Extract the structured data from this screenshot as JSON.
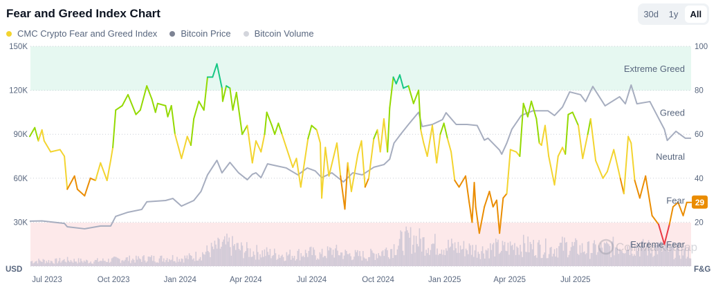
{
  "header": {
    "title": "Fear and Greed Index Chart"
  },
  "range_selector": {
    "options": [
      "30d",
      "1y",
      "All"
    ],
    "selected": "All"
  },
  "legend": [
    {
      "label": "CMC Crypto Fear and Greed Index",
      "color": "#f3d42f"
    },
    {
      "label": "Bitcoin Price",
      "color": "#7d8394"
    },
    {
      "label": "Bitcoin Volume",
      "color": "#d3d5dc"
    }
  ],
  "watermark": "CoinMarketCap",
  "chart_data": {
    "type": "line",
    "title": "Fear and Greed Index Chart",
    "left_axis": {
      "label": "USD",
      "ticks": [
        "30K",
        "60K",
        "90K",
        "120K",
        "150K"
      ],
      "range": [
        0,
        150000
      ]
    },
    "right_axis": {
      "label": "F&G",
      "ticks": [
        "20",
        "40",
        "60",
        "80",
        "100"
      ],
      "range": [
        0,
        100
      ]
    },
    "x_ticks": [
      "Jul 2023",
      "Oct 2023",
      "Jan 2024",
      "Apr 2024",
      "Jul 2024",
      "Oct 2024",
      "Jan 2025",
      "Apr 2025",
      "Jul 2025"
    ],
    "x_tick_dates": [
      "2023-07-01",
      "2023-10-01",
      "2024-01-01",
      "2024-04-01",
      "2024-07-01",
      "2024-10-01",
      "2025-01-01",
      "2025-04-01",
      "2025-07-01"
    ],
    "grid": true,
    "legend_position": "top-left",
    "zones": [
      {
        "label": "Extreme Greed",
        "from": 80,
        "to": 100,
        "color": "#e6f8f1"
      },
      {
        "label": "Greed",
        "from": 60,
        "to": 80
      },
      {
        "label": "Neutral",
        "from": 40,
        "to": 60
      },
      {
        "label": "Fear",
        "from": 20,
        "to": 40
      },
      {
        "label": "Extreme Fear",
        "from": 0,
        "to": 20,
        "color": "#fde9ea"
      }
    ],
    "zone_colors": {
      "extreme_fear": "#ea3943",
      "fear": "#ea8c00",
      "neutral": "#f3d42f",
      "greed": "#93d900",
      "extreme_greed": "#16c784"
    },
    "current_value": {
      "label": "29",
      "value": 29,
      "color": "#ea8c00"
    },
    "series": [
      {
        "name": "CMC Crypto Fear and Greed Index",
        "axis": "right",
        "points": [
          [
            "2023-06-07",
            59
          ],
          [
            "2023-06-14",
            63
          ],
          [
            "2023-06-19",
            57
          ],
          [
            "2023-06-24",
            62
          ],
          [
            "2023-06-27",
            57
          ],
          [
            "2023-07-06",
            52
          ],
          [
            "2023-07-19",
            53
          ],
          [
            "2023-07-25",
            50
          ],
          [
            "2023-07-29",
            35
          ],
          [
            "2023-08-08",
            41
          ],
          [
            "2023-08-12",
            35
          ],
          [
            "2023-08-22",
            32
          ],
          [
            "2023-08-30",
            40
          ],
          [
            "2023-09-06",
            39
          ],
          [
            "2023-09-13",
            47
          ],
          [
            "2023-09-22",
            39
          ],
          [
            "2023-09-27",
            48
          ],
          [
            "2023-09-30",
            54
          ],
          [
            "2023-10-04",
            71
          ],
          [
            "2023-10-13",
            73
          ],
          [
            "2023-10-21",
            78
          ],
          [
            "2023-11-01",
            69
          ],
          [
            "2023-11-07",
            71
          ],
          [
            "2023-11-16",
            82
          ],
          [
            "2023-11-23",
            76
          ],
          [
            "2023-11-28",
            70
          ],
          [
            "2023-12-01",
            74
          ],
          [
            "2023-12-12",
            73
          ],
          [
            "2023-12-15",
            68
          ],
          [
            "2023-12-20",
            73
          ],
          [
            "2023-12-25",
            60
          ],
          [
            "2024-01-03",
            49
          ],
          [
            "2024-01-11",
            59
          ],
          [
            "2024-01-16",
            55
          ],
          [
            "2024-01-20",
            67
          ],
          [
            "2024-01-27",
            75
          ],
          [
            "2024-02-03",
            71
          ],
          [
            "2024-02-08",
            86
          ],
          [
            "2024-02-15",
            86
          ],
          [
            "2024-02-21",
            92
          ],
          [
            "2024-02-28",
            81
          ],
          [
            "2024-02-29",
            75
          ],
          [
            "2024-03-05",
            82
          ],
          [
            "2024-03-10",
            81
          ],
          [
            "2024-03-14",
            71
          ],
          [
            "2024-03-19",
            79
          ],
          [
            "2024-03-27",
            60
          ],
          [
            "2024-04-03",
            64
          ],
          [
            "2024-04-10",
            47
          ],
          [
            "2024-04-15",
            57
          ],
          [
            "2024-04-22",
            52
          ],
          [
            "2024-04-27",
            60
          ],
          [
            "2024-04-30",
            70
          ],
          [
            "2024-05-07",
            64
          ],
          [
            "2024-05-11",
            60
          ],
          [
            "2024-05-16",
            65
          ],
          [
            "2024-05-21",
            60
          ],
          [
            "2024-05-27",
            54
          ],
          [
            "2024-06-05",
            45
          ],
          [
            "2024-06-10",
            49
          ],
          [
            "2024-06-16",
            36
          ],
          [
            "2024-06-26",
            58
          ],
          [
            "2024-07-01",
            64
          ],
          [
            "2024-07-08",
            62
          ],
          [
            "2024-07-13",
            56
          ],
          [
            "2024-07-15",
            31
          ],
          [
            "2024-07-20",
            54
          ],
          [
            "2024-07-25",
            41
          ],
          [
            "2024-08-05",
            56
          ],
          [
            "2024-08-10",
            41
          ],
          [
            "2024-08-16",
            26
          ],
          [
            "2024-08-20",
            47
          ],
          [
            "2024-08-25",
            34
          ],
          [
            "2024-09-03",
            51
          ],
          [
            "2024-09-08",
            57
          ],
          [
            "2024-09-13",
            36
          ],
          [
            "2024-09-18",
            40
          ],
          [
            "2024-09-25",
            58
          ],
          [
            "2024-09-30",
            62
          ],
          [
            "2024-10-04",
            52
          ],
          [
            "2024-10-09",
            67
          ],
          [
            "2024-10-14",
            52
          ],
          [
            "2024-10-17",
            72
          ],
          [
            "2024-10-22",
            86
          ],
          [
            "2024-10-26",
            83
          ],
          [
            "2024-10-31",
            87
          ],
          [
            "2024-11-05",
            81
          ],
          [
            "2024-11-12",
            82
          ],
          [
            "2024-11-19",
            74
          ],
          [
            "2024-11-26",
            80
          ],
          [
            "2024-11-29",
            62
          ],
          [
            "2024-12-03",
            56
          ],
          [
            "2024-12-08",
            50
          ],
          [
            "2024-12-15",
            64
          ],
          [
            "2024-12-21",
            47
          ],
          [
            "2024-12-26",
            60
          ],
          [
            "2024-12-31",
            65
          ],
          [
            "2025-01-05",
            58
          ],
          [
            "2025-01-10",
            52
          ],
          [
            "2025-01-15",
            39
          ],
          [
            "2025-01-21",
            36
          ],
          [
            "2025-01-30",
            41
          ],
          [
            "2025-02-04",
            29
          ],
          [
            "2025-02-08",
            20
          ],
          [
            "2025-02-11",
            38
          ],
          [
            "2025-02-13",
            27
          ],
          [
            "2025-02-18",
            15
          ],
          [
            "2025-02-25",
            27
          ],
          [
            "2025-03-04",
            34
          ],
          [
            "2025-03-09",
            27
          ],
          [
            "2025-03-14",
            30
          ],
          [
            "2025-03-18",
            15
          ],
          [
            "2025-03-23",
            31
          ],
          [
            "2025-03-28",
            33
          ],
          [
            "2025-04-02",
            53
          ],
          [
            "2025-04-10",
            52
          ],
          [
            "2025-04-15",
            50
          ],
          [
            "2025-04-20",
            74
          ],
          [
            "2025-04-26",
            68
          ],
          [
            "2025-05-01",
            75
          ],
          [
            "2025-05-08",
            67
          ],
          [
            "2025-05-12",
            56
          ],
          [
            "2025-05-15",
            55
          ],
          [
            "2025-05-20",
            64
          ],
          [
            "2025-05-25",
            50
          ],
          [
            "2025-06-02",
            37
          ],
          [
            "2025-06-07",
            50
          ],
          [
            "2025-06-13",
            54
          ],
          [
            "2025-06-17",
            51
          ],
          [
            "2025-06-21",
            69
          ],
          [
            "2025-06-27",
            70
          ],
          [
            "2025-07-05",
            64
          ],
          [
            "2025-07-11",
            49
          ],
          [
            "2025-07-18",
            60
          ],
          [
            "2025-07-22",
            67
          ],
          [
            "2025-07-29",
            48
          ],
          [
            "2025-08-08",
            40
          ],
          [
            "2025-08-14",
            43
          ],
          [
            "2025-08-23",
            53
          ],
          [
            "2025-09-01",
            40
          ],
          [
            "2025-09-06",
            33
          ],
          [
            "2025-09-12",
            59
          ],
          [
            "2025-09-16",
            56
          ],
          [
            "2025-09-21",
            39
          ],
          [
            "2025-09-28",
            31
          ],
          [
            "2025-10-06",
            41
          ],
          [
            "2025-10-15",
            23
          ],
          [
            "2025-10-24",
            19
          ],
          [
            "2025-11-01",
            10
          ],
          [
            "2025-11-08",
            19
          ],
          [
            "2025-11-13",
            27
          ],
          [
            "2025-11-20",
            29
          ],
          [
            "2025-11-27",
            23
          ],
          [
            "2025-12-02",
            29
          ],
          [
            "2025-12-08",
            29
          ]
        ]
      },
      {
        "name": "Bitcoin Price",
        "axis": "left",
        "color": "#a6adbf",
        "points": [
          [
            "2023-06-07",
            30700
          ],
          [
            "2023-06-24",
            30900
          ],
          [
            "2023-07-25",
            29200
          ],
          [
            "2023-07-29",
            26900
          ],
          [
            "2023-08-22",
            25500
          ],
          [
            "2023-09-13",
            27400
          ],
          [
            "2023-09-27",
            27400
          ],
          [
            "2023-10-04",
            34000
          ],
          [
            "2023-10-21",
            36800
          ],
          [
            "2023-11-09",
            38700
          ],
          [
            "2023-11-16",
            43900
          ],
          [
            "2023-12-12",
            44800
          ],
          [
            "2023-12-22",
            46200
          ],
          [
            "2024-01-03",
            41000
          ],
          [
            "2024-01-20",
            44800
          ],
          [
            "2024-01-30",
            51000
          ],
          [
            "2024-02-08",
            62300
          ],
          [
            "2024-02-21",
            72200
          ],
          [
            "2024-02-28",
            63700
          ],
          [
            "2024-03-10",
            70800
          ],
          [
            "2024-03-22",
            63700
          ],
          [
            "2024-04-03",
            59000
          ],
          [
            "2024-04-10",
            62700
          ],
          [
            "2024-04-15",
            63700
          ],
          [
            "2024-04-22",
            60400
          ],
          [
            "2024-05-01",
            69800
          ],
          [
            "2024-05-14",
            68400
          ],
          [
            "2024-05-27",
            67000
          ],
          [
            "2024-06-12",
            62300
          ],
          [
            "2024-06-25",
            67000
          ],
          [
            "2024-07-06",
            65000
          ],
          [
            "2024-07-15",
            60400
          ],
          [
            "2024-07-29",
            63700
          ],
          [
            "2024-08-14",
            57500
          ],
          [
            "2024-08-27",
            63700
          ],
          [
            "2024-09-09",
            62300
          ],
          [
            "2024-09-25",
            67500
          ],
          [
            "2024-10-09",
            69300
          ],
          [
            "2024-10-17",
            73000
          ],
          [
            "2024-10-23",
            84000
          ],
          [
            "2024-11-02",
            90500
          ],
          [
            "2024-11-12",
            96700
          ],
          [
            "2024-11-26",
            105000
          ],
          [
            "2024-12-01",
            95300
          ],
          [
            "2024-12-15",
            96700
          ],
          [
            "2024-12-29",
            100000
          ],
          [
            "2025-01-03",
            104700
          ],
          [
            "2025-01-17",
            96700
          ],
          [
            "2025-02-01",
            96700
          ],
          [
            "2025-02-15",
            96000
          ],
          [
            "2025-02-25",
            86000
          ],
          [
            "2025-03-02",
            87300
          ],
          [
            "2025-03-18",
            79200
          ],
          [
            "2025-03-21",
            76400
          ],
          [
            "2025-03-28",
            84000
          ],
          [
            "2025-04-04",
            93400
          ],
          [
            "2025-04-17",
            102800
          ],
          [
            "2025-05-03",
            106000
          ],
          [
            "2025-05-24",
            106000
          ],
          [
            "2025-06-02",
            102800
          ],
          [
            "2025-06-13",
            108500
          ],
          [
            "2025-06-23",
            118900
          ],
          [
            "2025-07-08",
            117000
          ],
          [
            "2025-07-15",
            112300
          ],
          [
            "2025-07-25",
            122600
          ],
          [
            "2025-08-11",
            109400
          ],
          [
            "2025-08-31",
            115600
          ],
          [
            "2025-09-08",
            110800
          ],
          [
            "2025-09-16",
            123600
          ],
          [
            "2025-09-24",
            110800
          ],
          [
            "2025-10-12",
            112300
          ],
          [
            "2025-10-22",
            102800
          ],
          [
            "2025-11-01",
            93400
          ],
          [
            "2025-11-05",
            85800
          ],
          [
            "2025-11-17",
            92000
          ],
          [
            "2025-11-30",
            87300
          ],
          [
            "2025-12-08",
            87300
          ]
        ]
      },
      {
        "name": "Bitcoin Volume",
        "axis": "none",
        "color": "#d3cbd8",
        "values_relative": [
          8,
          9,
          8,
          10,
          9,
          8,
          9,
          10,
          12,
          11,
          13,
          12,
          14,
          13,
          15,
          22,
          30,
          35,
          28,
          24,
          22,
          20,
          18,
          20,
          22,
          18,
          25,
          20,
          18,
          17,
          22,
          28,
          40,
          45,
          38,
          35,
          32,
          30,
          28,
          26,
          30,
          28,
          35,
          32,
          30,
          28,
          33,
          30,
          27,
          28,
          30,
          35,
          32,
          29,
          30,
          27,
          24,
          22
        ]
      }
    ]
  }
}
